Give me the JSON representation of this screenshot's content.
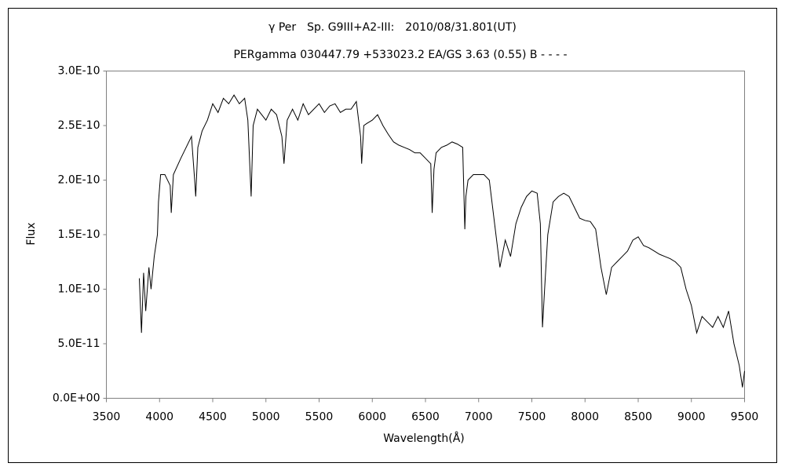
{
  "chart_data": {
    "type": "line",
    "title": "γ Per　Sp. G9III+A2-III:　2010/08/31.801(UT)",
    "subtitle": "PERgamma 030447.79 +533023.2 EA/GS 3.63 (0.55) B - - - -",
    "x_label": "Wavelength(Å)",
    "y_label": "Flux",
    "color": "#000000",
    "grid": false,
    "xlim": [
      3500,
      9500
    ],
    "xticks": [
      3500,
      4000,
      4500,
      5000,
      5500,
      6000,
      6500,
      7000,
      7500,
      8000,
      8500,
      9000,
      9500
    ],
    "ylim": [
      0,
      3e-10
    ],
    "yticks": [
      {
        "value": 0,
        "label": "0.0E+00"
      },
      {
        "value": 5e-11,
        "label": "5.0E-11"
      },
      {
        "value": 1e-10,
        "label": "1.0E-10"
      },
      {
        "value": 1.5e-10,
        "label": "1.5E-10"
      },
      {
        "value": 2e-10,
        "label": "2.0E-10"
      },
      {
        "value": 2.5e-10,
        "label": "2.5E-10"
      },
      {
        "value": 3e-10,
        "label": "3.0E-10"
      }
    ],
    "x": [
      3810,
      3830,
      3850,
      3870,
      3900,
      3920,
      3950,
      3980,
      3990,
      4010,
      4050,
      4100,
      4110,
      4130,
      4200,
      4250,
      4300,
      4330,
      4340,
      4360,
      4400,
      4450,
      4500,
      4550,
      4600,
      4650,
      4700,
      4750,
      4800,
      4830,
      4861,
      4880,
      4920,
      5000,
      5050,
      5100,
      5150,
      5170,
      5200,
      5250,
      5300,
      5350,
      5400,
      5450,
      5500,
      5550,
      5600,
      5650,
      5700,
      5750,
      5800,
      5850,
      5890,
      5900,
      5920,
      5950,
      6000,
      6050,
      6100,
      6150,
      6200,
      6250,
      6300,
      6350,
      6400,
      6450,
      6500,
      6550,
      6563,
      6580,
      6600,
      6650,
      6700,
      6750,
      6800,
      6850,
      6870,
      6880,
      6900,
      6950,
      7000,
      7050,
      7100,
      7150,
      7200,
      7250,
      7300,
      7350,
      7400,
      7450,
      7500,
      7550,
      7580,
      7600,
      7620,
      7650,
      7700,
      7750,
      7800,
      7850,
      7900,
      7950,
      8000,
      8050,
      8100,
      8150,
      8200,
      8250,
      8300,
      8350,
      8400,
      8450,
      8500,
      8550,
      8600,
      8650,
      8700,
      8750,
      8800,
      8850,
      8900,
      8950,
      9000,
      9050,
      9100,
      9150,
      9200,
      9250,
      9300,
      9350,
      9400,
      9450,
      9480,
      9500
    ],
    "values": [
      1.1e-10,
      6e-11,
      1.15e-10,
      8e-11,
      1.2e-10,
      1e-10,
      1.3e-10,
      1.5e-10,
      1.8e-10,
      2.05e-10,
      2.05e-10,
      1.95e-10,
      1.7e-10,
      2.05e-10,
      2.2e-10,
      2.3e-10,
      2.4e-10,
      2e-10,
      1.85e-10,
      2.3e-10,
      2.45e-10,
      2.55e-10,
      2.7e-10,
      2.62e-10,
      2.75e-10,
      2.7e-10,
      2.78e-10,
      2.7e-10,
      2.75e-10,
      2.55e-10,
      1.85e-10,
      2.5e-10,
      2.65e-10,
      2.55e-10,
      2.65e-10,
      2.6e-10,
      2.4e-10,
      2.15e-10,
      2.55e-10,
      2.65e-10,
      2.55e-10,
      2.7e-10,
      2.6e-10,
      2.65e-10,
      2.7e-10,
      2.62e-10,
      2.68e-10,
      2.7e-10,
      2.62e-10,
      2.65e-10,
      2.65e-10,
      2.72e-10,
      2.4e-10,
      2.15e-10,
      2.5e-10,
      2.52e-10,
      2.55e-10,
      2.6e-10,
      2.5e-10,
      2.42e-10,
      2.35e-10,
      2.32e-10,
      2.3e-10,
      2.28e-10,
      2.25e-10,
      2.25e-10,
      2.2e-10,
      2.15e-10,
      1.7e-10,
      2.1e-10,
      2.25e-10,
      2.3e-10,
      2.32e-10,
      2.35e-10,
      2.33e-10,
      2.3e-10,
      1.55e-10,
      1.85e-10,
      2e-10,
      2.05e-10,
      2.05e-10,
      2.05e-10,
      2e-10,
      1.6e-10,
      1.2e-10,
      1.45e-10,
      1.3e-10,
      1.6e-10,
      1.75e-10,
      1.85e-10,
      1.9e-10,
      1.88e-10,
      1.6e-10,
      6.5e-11,
      1e-10,
      1.5e-10,
      1.8e-10,
      1.85e-10,
      1.88e-10,
      1.85e-10,
      1.75e-10,
      1.65e-10,
      1.63e-10,
      1.62e-10,
      1.55e-10,
      1.2e-10,
      9.5e-11,
      1.2e-10,
      1.25e-10,
      1.3e-10,
      1.35e-10,
      1.45e-10,
      1.48e-10,
      1.4e-10,
      1.38e-10,
      1.35e-10,
      1.32e-10,
      1.3e-10,
      1.28e-10,
      1.25e-10,
      1.2e-10,
      1e-10,
      8.5e-11,
      6e-11,
      7.5e-11,
      7e-11,
      6.5e-11,
      7.5e-11,
      6.5e-11,
      8e-11,
      5e-11,
      3e-11,
      1e-11,
      2.5e-11
    ]
  }
}
